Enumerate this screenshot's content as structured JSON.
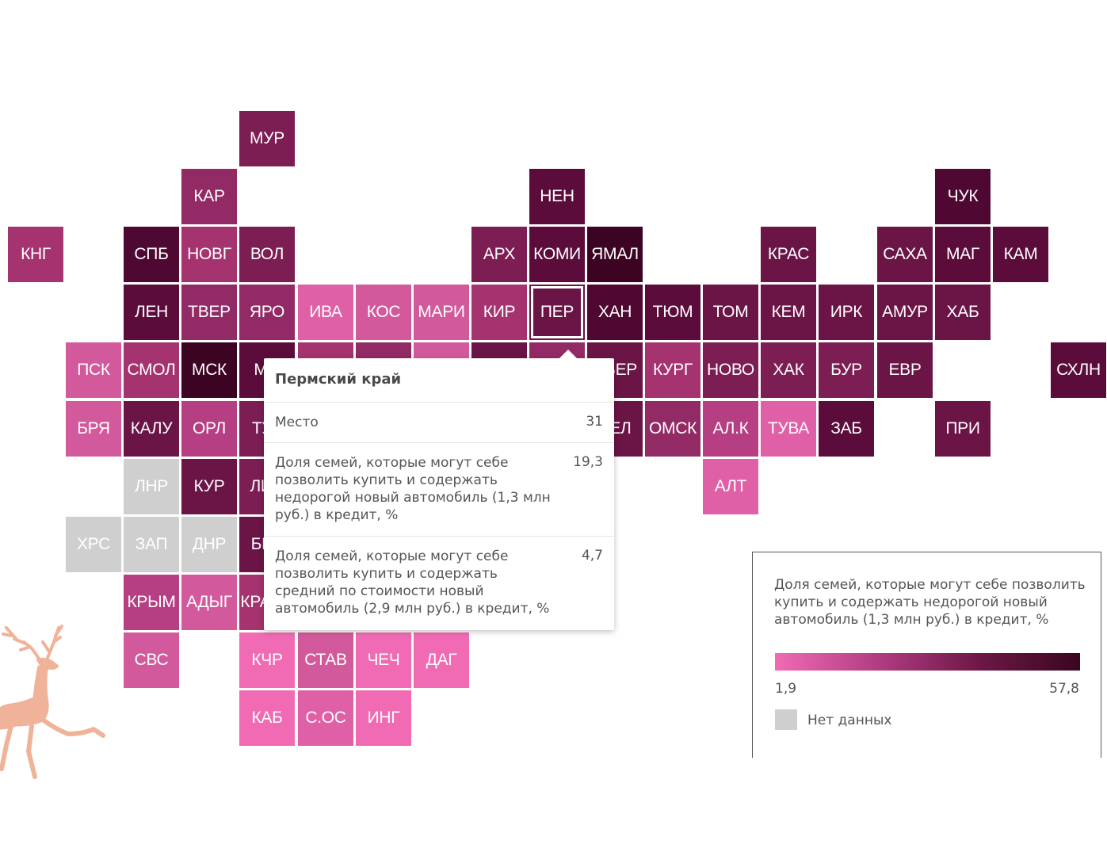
{
  "colors": {
    "c1": "#f06bb4",
    "c2": "#e060a8",
    "c3": "#d25a9c",
    "c4": "#b63f84",
    "c5": "#a5336f",
    "c6": "#922a65",
    "c7": "#7c1d54",
    "c8": "#6b1446",
    "c9": "#5c0c3b",
    "c10": "#4e0832",
    "c11": "#3c0323",
    "nodata": "#cfcfcf"
  },
  "tiles": [
    {
      "label": "МУР",
      "r": 0,
      "c": 4,
      "color": "c7"
    },
    {
      "label": "КАР",
      "r": 1,
      "c": 3,
      "color": "c6"
    },
    {
      "label": "НЕН",
      "r": 1,
      "c": 9,
      "color": "c9"
    },
    {
      "label": "ЧУК",
      "r": 1,
      "c": 16,
      "color": "c10"
    },
    {
      "label": "КНГ",
      "r": 2,
      "c": 0,
      "color": "c5"
    },
    {
      "label": "СПБ",
      "r": 2,
      "c": 2,
      "color": "c10"
    },
    {
      "label": "НОВГ",
      "r": 2,
      "c": 3,
      "color": "c5"
    },
    {
      "label": "ВОЛ",
      "r": 2,
      "c": 4,
      "color": "c7"
    },
    {
      "label": "АРХ",
      "r": 2,
      "c": 8,
      "color": "c7"
    },
    {
      "label": "КОМИ",
      "r": 2,
      "c": 9,
      "color": "c9"
    },
    {
      "label": "ЯМАЛ",
      "r": 2,
      "c": 10,
      "color": "c11"
    },
    {
      "label": "КРАС",
      "r": 2,
      "c": 13,
      "color": "c8"
    },
    {
      "label": "САХА",
      "r": 2,
      "c": 15,
      "color": "c8"
    },
    {
      "label": "МАГ",
      "r": 2,
      "c": 16,
      "color": "c9"
    },
    {
      "label": "КАМ",
      "r": 2,
      "c": 17,
      "color": "c9"
    },
    {
      "label": "ЛЕН",
      "r": 3,
      "c": 2,
      "color": "c9"
    },
    {
      "label": "ТВЕР",
      "r": 3,
      "c": 3,
      "color": "c6"
    },
    {
      "label": "ЯРО",
      "r": 3,
      "c": 4,
      "color": "c6"
    },
    {
      "label": "ИВА",
      "r": 3,
      "c": 5,
      "color": "c2"
    },
    {
      "label": "КОС",
      "r": 3,
      "c": 6,
      "color": "c3"
    },
    {
      "label": "МАРИ",
      "r": 3,
      "c": 7,
      "color": "c3"
    },
    {
      "label": "КИР",
      "r": 3,
      "c": 8,
      "color": "c5"
    },
    {
      "label": "ПЕР",
      "r": 3,
      "c": 9,
      "color": "c8",
      "selected": true
    },
    {
      "label": "ХАН",
      "r": 3,
      "c": 10,
      "color": "c10"
    },
    {
      "label": "ТЮМ",
      "r": 3,
      "c": 11,
      "color": "c9"
    },
    {
      "label": "ТОМ",
      "r": 3,
      "c": 12,
      "color": "c8"
    },
    {
      "label": "КЕМ",
      "r": 3,
      "c": 13,
      "color": "c8"
    },
    {
      "label": "ИРК",
      "r": 3,
      "c": 14,
      "color": "c8"
    },
    {
      "label": "АМУР",
      "r": 3,
      "c": 15,
      "color": "c8"
    },
    {
      "label": "ХАБ",
      "r": 3,
      "c": 16,
      "color": "c8"
    },
    {
      "label": "ПСК",
      "r": 4,
      "c": 1,
      "color": "c3"
    },
    {
      "label": "СМОЛ",
      "r": 4,
      "c": 2,
      "color": "c5"
    },
    {
      "label": "МСК",
      "r": 4,
      "c": 3,
      "color": "c11"
    },
    {
      "label": "МО",
      "r": 4,
      "c": 4,
      "color": "c9"
    },
    {
      "label": "",
      "r": 4,
      "c": 5,
      "color": "c5"
    },
    {
      "label": "",
      "r": 4,
      "c": 6,
      "color": "c6"
    },
    {
      "label": "",
      "r": 4,
      "c": 7,
      "color": "c3"
    },
    {
      "label": "",
      "r": 4,
      "c": 8,
      "color": "c8"
    },
    {
      "label": "",
      "r": 4,
      "c": 9,
      "color": "c6"
    },
    {
      "label": "СВЕР",
      "r": 4,
      "c": 10,
      "color": "c8"
    },
    {
      "label": "КУРГ",
      "r": 4,
      "c": 11,
      "color": "c5"
    },
    {
      "label": "НОВО",
      "r": 4,
      "c": 12,
      "color": "c7"
    },
    {
      "label": "ХАК",
      "r": 4,
      "c": 13,
      "color": "c7"
    },
    {
      "label": "БУР",
      "r": 4,
      "c": 14,
      "color": "c7"
    },
    {
      "label": "ЕВР",
      "r": 4,
      "c": 15,
      "color": "c8"
    },
    {
      "label": "СХЛН",
      "r": 4,
      "c": 18,
      "color": "c9"
    },
    {
      "label": "БРЯ",
      "r": 5,
      "c": 1,
      "color": "c3"
    },
    {
      "label": "КАЛУ",
      "r": 5,
      "c": 2,
      "color": "c8"
    },
    {
      "label": "ОРЛ",
      "r": 5,
      "c": 3,
      "color": "c4"
    },
    {
      "label": "ТУЛ",
      "r": 5,
      "c": 4,
      "color": "c7"
    },
    {
      "label": "ЧЕЛ",
      "r": 5,
      "c": 10,
      "color": "c8"
    },
    {
      "label": "ОМСК",
      "r": 5,
      "c": 11,
      "color": "c6"
    },
    {
      "label": "АЛ.К",
      "r": 5,
      "c": 12,
      "color": "c4"
    },
    {
      "label": "ТУВА",
      "r": 5,
      "c": 13,
      "color": "c2"
    },
    {
      "label": "ЗАБ",
      "r": 5,
      "c": 14,
      "color": "c9"
    },
    {
      "label": "ПРИ",
      "r": 5,
      "c": 16,
      "color": "c8"
    },
    {
      "label": "ЛНР",
      "r": 6,
      "c": 2,
      "color": "nodata"
    },
    {
      "label": "КУР",
      "r": 6,
      "c": 3,
      "color": "c8"
    },
    {
      "label": "ЛИП",
      "r": 6,
      "c": 4,
      "color": "c7"
    },
    {
      "label": "АЛТ",
      "r": 6,
      "c": 12,
      "color": "c2"
    },
    {
      "label": "ХРС",
      "r": 7,
      "c": 1,
      "color": "nodata"
    },
    {
      "label": "ЗАП",
      "r": 7,
      "c": 2,
      "color": "nodata"
    },
    {
      "label": "ДНР",
      "r": 7,
      "c": 3,
      "color": "nodata"
    },
    {
      "label": "БЕЛ",
      "r": 7,
      "c": 4,
      "color": "c8"
    },
    {
      "label": "КРЫМ",
      "r": 8,
      "c": 2,
      "color": "c4"
    },
    {
      "label": "АДЫГ",
      "r": 8,
      "c": 3,
      "color": "c3"
    },
    {
      "label": "КРАСН",
      "r": 8,
      "c": 4,
      "color": "c5"
    },
    {
      "label": "СВС",
      "r": 9,
      "c": 2,
      "color": "c3"
    },
    {
      "label": "КЧР",
      "r": 9,
      "c": 4,
      "color": "c1"
    },
    {
      "label": "СТАВ",
      "r": 9,
      "c": 5,
      "color": "c3"
    },
    {
      "label": "ЧЕЧ",
      "r": 9,
      "c": 6,
      "color": "c1"
    },
    {
      "label": "ДАГ",
      "r": 9,
      "c": 7,
      "color": "c1"
    },
    {
      "label": "КАБ",
      "r": 10,
      "c": 4,
      "color": "c1"
    },
    {
      "label": "С.ОС",
      "r": 10,
      "c": 5,
      "color": "c2"
    },
    {
      "label": "ИНГ",
      "r": 10,
      "c": 6,
      "color": "c1"
    }
  ],
  "tooltip": {
    "title": "Пермский край",
    "rows": [
      {
        "label": "Место",
        "value": "31"
      },
      {
        "label": "Доля семей, которые могут себе позволить купить и содержать недорогой новый автомобиль (1,3 млн руб.) в кредит, %",
        "value": "19,3"
      },
      {
        "label": "Доля семей, которые могут себе позволить купить и содержать средний по стоимости новый автомобиль (2,9 млн руб.) в кредит, %",
        "value": "4,7"
      }
    ]
  },
  "legend": {
    "title": "Доля семей, которые могут себе позволить купить и содержать недорогой новый автомобиль (1,3 млн руб.) в кредит, %",
    "min": "1,9",
    "max": "57,8",
    "nodata_label": "Нет данных",
    "gradient": [
      "#f06bb4",
      "#3a0620"
    ]
  },
  "watermark_color": "#f0b39a"
}
